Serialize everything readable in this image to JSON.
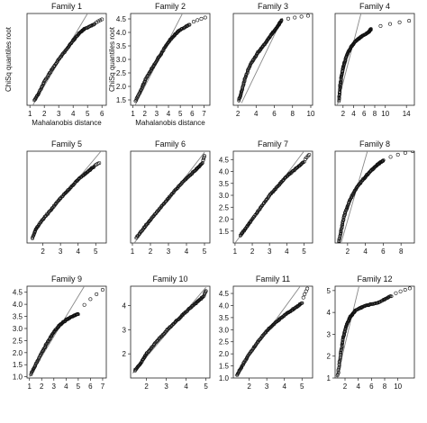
{
  "colors": {
    "axis": "#222222",
    "ref_line": "#888888",
    "points": "#111111",
    "background": "#ffffff"
  },
  "chart_data": [
    {
      "type": "scatter",
      "title": "Family 1",
      "xlabel": "Mahalanobis distance",
      "ylabel": "ChiSq quantiles root",
      "xlim": [
        0.8,
        6.3
      ],
      "ylim": [
        1.0,
        4.9
      ],
      "xticks": [
        1,
        2,
        3,
        4,
        5,
        6
      ],
      "yticks": [],
      "reference_line": [
        [
          1.0,
          0.8
        ],
        [
          5.0,
          4.9
        ]
      ],
      "qq_curve": [
        [
          1.3,
          1.2
        ],
        [
          1.6,
          1.5
        ],
        [
          2.0,
          2.0
        ],
        [
          2.5,
          2.5
        ],
        [
          3.0,
          2.95
        ],
        [
          3.5,
          3.35
        ],
        [
          4.0,
          3.75
        ],
        [
          4.4,
          4.05
        ],
        [
          4.8,
          4.25
        ],
        [
          5.5,
          4.45
        ],
        [
          6.0,
          4.65
        ]
      ],
      "n_points": 120
    },
    {
      "type": "scatter",
      "title": "Family 2",
      "xlabel": "Mahalanobis distance",
      "ylabel": "ChiSq quantiles root",
      "xlim": [
        0.8,
        7.5
      ],
      "ylim": [
        1.3,
        4.7
      ],
      "xticks": [
        1,
        2,
        3,
        4,
        5,
        6,
        7
      ],
      "yticks": [
        1.5,
        2.0,
        2.5,
        3.0,
        3.5,
        4.0,
        4.5
      ],
      "reference_line": [
        [
          1.0,
          1.15
        ],
        [
          5.3,
          4.8
        ]
      ],
      "qq_curve": [
        [
          1.2,
          1.45
        ],
        [
          1.6,
          1.8
        ],
        [
          2.0,
          2.2
        ],
        [
          2.5,
          2.6
        ],
        [
          3.0,
          2.95
        ],
        [
          3.5,
          3.3
        ],
        [
          4.0,
          3.65
        ],
        [
          4.5,
          3.9
        ],
        [
          5.0,
          4.1
        ],
        [
          5.8,
          4.3
        ],
        [
          7.1,
          4.55
        ]
      ],
      "n_points": 120
    },
    {
      "type": "scatter",
      "title": "Family 3",
      "xlabel": "",
      "ylabel": "",
      "xlim": [
        1.5,
        10.2
      ],
      "ylim": [
        1.0,
        5.0
      ],
      "xticks": [
        2,
        4,
        6,
        8,
        10
      ],
      "yticks": [],
      "reference_line": [
        [
          2.4,
          1.1
        ],
        [
          6.9,
          4.8
        ]
      ],
      "qq_curve": [
        [
          2.1,
          1.2
        ],
        [
          2.4,
          1.6
        ],
        [
          2.8,
          2.2
        ],
        [
          3.4,
          2.8
        ],
        [
          4.2,
          3.3
        ],
        [
          5.0,
          3.7
        ],
        [
          5.7,
          4.1
        ],
        [
          6.3,
          4.4
        ],
        [
          6.8,
          4.7
        ],
        [
          9.7,
          4.9
        ]
      ],
      "n_points": 130
    },
    {
      "type": "scatter",
      "title": "Family 4",
      "xlabel": "",
      "ylabel": "",
      "xlim": [
        0.5,
        15.5
      ],
      "ylim": [
        0.8,
        5.2
      ],
      "xticks": [
        2,
        4,
        6,
        8,
        10,
        14
      ],
      "yticks": [],
      "reference_line": [
        [
          0.8,
          0.7
        ],
        [
          5.5,
          5.3
        ]
      ],
      "qq_curve": [
        [
          1.2,
          1.0
        ],
        [
          1.4,
          1.6
        ],
        [
          1.7,
          2.2
        ],
        [
          2.1,
          2.7
        ],
        [
          2.7,
          3.2
        ],
        [
          3.5,
          3.6
        ],
        [
          4.5,
          3.9
        ],
        [
          5.5,
          4.1
        ],
        [
          6.8,
          4.3
        ],
        [
          7.3,
          4.45
        ],
        [
          14.5,
          4.85
        ]
      ],
      "n_points": 150
    },
    {
      "type": "scatter",
      "title": "Family 5",
      "xlabel": "",
      "ylabel": "",
      "xlim": [
        1.1,
        5.6
      ],
      "ylim": [
        1.0,
        4.9
      ],
      "xticks": [
        2,
        3,
        4,
        5
      ],
      "yticks": [],
      "reference_line": [
        [
          1.5,
          1.5
        ],
        [
          5.3,
          4.9
        ]
      ],
      "qq_curve": [
        [
          1.4,
          1.2
        ],
        [
          1.6,
          1.6
        ],
        [
          2.0,
          2.0
        ],
        [
          2.5,
          2.45
        ],
        [
          3.0,
          2.9
        ],
        [
          3.5,
          3.3
        ],
        [
          4.0,
          3.7
        ],
        [
          4.5,
          4.0
        ],
        [
          4.9,
          4.25
        ],
        [
          5.2,
          4.4
        ]
      ],
      "n_points": 120
    },
    {
      "type": "scatter",
      "title": "Family 6",
      "xlabel": "",
      "ylabel": "",
      "xlim": [
        0.9,
        5.3
      ],
      "ylim": [
        1.0,
        4.9
      ],
      "xticks": [
        1,
        2,
        3,
        4,
        5
      ],
      "yticks": [],
      "reference_line": [
        [
          1.1,
          1.0
        ],
        [
          5.0,
          4.85
        ]
      ],
      "qq_curve": [
        [
          1.2,
          1.2
        ],
        [
          1.6,
          1.6
        ],
        [
          2.0,
          2.0
        ],
        [
          2.5,
          2.45
        ],
        [
          3.0,
          2.9
        ],
        [
          3.5,
          3.35
        ],
        [
          4.0,
          3.75
        ],
        [
          4.5,
          4.1
        ],
        [
          4.9,
          4.4
        ],
        [
          5.0,
          4.7
        ]
      ],
      "n_points": 120
    },
    {
      "type": "scatter",
      "title": "Family 7",
      "xlabel": "",
      "ylabel": "",
      "xlim": [
        0.9,
        5.5
      ],
      "ylim": [
        1.0,
        4.85
      ],
      "xticks": [
        1,
        2,
        3,
        4,
        5
      ],
      "yticks": [
        1.5,
        2.0,
        2.5,
        3.0,
        3.5,
        4.0,
        4.5
      ],
      "reference_line": [
        [
          1.0,
          1.0
        ],
        [
          5.0,
          4.85
        ]
      ],
      "qq_curve": [
        [
          1.3,
          1.3
        ],
        [
          1.6,
          1.6
        ],
        [
          2.0,
          2.0
        ],
        [
          2.5,
          2.5
        ],
        [
          3.0,
          3.0
        ],
        [
          3.5,
          3.4
        ],
        [
          4.0,
          3.8
        ],
        [
          4.5,
          4.1
        ],
        [
          5.0,
          4.4
        ],
        [
          5.3,
          4.7
        ]
      ],
      "n_points": 120
    },
    {
      "type": "scatter",
      "title": "Family 8",
      "xlabel": "",
      "ylabel": "",
      "xlim": [
        0.6,
        9.5
      ],
      "ylim": [
        1.0,
        5.0
      ],
      "xticks": [
        2,
        4,
        6,
        8
      ],
      "yticks": [],
      "reference_line": [
        [
          1.2,
          0.9
        ],
        [
          4.3,
          5.1
        ]
      ],
      "qq_curve": [
        [
          1.0,
          1.0
        ],
        [
          1.3,
          1.6
        ],
        [
          1.7,
          2.3
        ],
        [
          2.3,
          2.9
        ],
        [
          3.0,
          3.4
        ],
        [
          3.8,
          3.8
        ],
        [
          4.5,
          4.1
        ],
        [
          5.3,
          4.4
        ],
        [
          6.0,
          4.6
        ],
        [
          9.3,
          5.0
        ]
      ],
      "n_points": 140
    },
    {
      "type": "scatter",
      "title": "Family 9",
      "xlabel": "",
      "ylabel": "",
      "xlim": [
        0.8,
        7.3
      ],
      "ylim": [
        0.95,
        4.75
      ],
      "xticks": [
        1,
        2,
        3,
        4,
        5,
        6,
        7
      ],
      "yticks": [
        1.0,
        1.5,
        2.0,
        2.5,
        3.0,
        3.5,
        4.0,
        4.5
      ],
      "reference_line": [
        [
          1.0,
          1.0
        ],
        [
          5.5,
          4.75
        ]
      ],
      "qq_curve": [
        [
          1.1,
          1.1
        ],
        [
          1.5,
          1.5
        ],
        [
          2.0,
          2.0
        ],
        [
          2.5,
          2.45
        ],
        [
          3.0,
          2.85
        ],
        [
          3.5,
          3.15
        ],
        [
          4.0,
          3.35
        ],
        [
          4.5,
          3.5
        ],
        [
          5.0,
          3.6
        ],
        [
          7.0,
          4.6
        ]
      ],
      "n_points": 120
    },
    {
      "type": "scatter",
      "title": "Family 10",
      "xlabel": "",
      "ylabel": "",
      "xlim": [
        1.2,
        5.2
      ],
      "ylim": [
        1.0,
        4.8
      ],
      "xticks": [
        2,
        3,
        4,
        5
      ],
      "yticks": [
        2,
        3,
        4
      ],
      "reference_line": [
        [
          1.3,
          1.2
        ],
        [
          5.0,
          4.75
        ]
      ],
      "qq_curve": [
        [
          1.4,
          1.3
        ],
        [
          1.7,
          1.6
        ],
        [
          2.0,
          2.0
        ],
        [
          2.5,
          2.5
        ],
        [
          3.0,
          2.95
        ],
        [
          3.5,
          3.35
        ],
        [
          4.0,
          3.75
        ],
        [
          4.5,
          4.1
        ],
        [
          4.9,
          4.4
        ],
        [
          5.0,
          4.6
        ]
      ],
      "n_points": 130
    },
    {
      "type": "scatter",
      "title": "Family 11",
      "xlabel": "",
      "ylabel": "",
      "xlim": [
        1.1,
        5.6
      ],
      "ylim": [
        1.0,
        4.8
      ],
      "xticks": [
        2,
        3,
        4,
        5
      ],
      "yticks": [
        1.0,
        1.5,
        2.0,
        2.5,
        3.0,
        3.5,
        4.0,
        4.5
      ],
      "reference_line": [
        [
          1.2,
          1.1
        ],
        [
          4.9,
          4.8
        ]
      ],
      "qq_curve": [
        [
          1.3,
          1.1
        ],
        [
          1.6,
          1.5
        ],
        [
          2.0,
          2.0
        ],
        [
          2.5,
          2.5
        ],
        [
          3.0,
          2.95
        ],
        [
          3.5,
          3.3
        ],
        [
          4.0,
          3.6
        ],
        [
          4.5,
          3.85
        ],
        [
          5.0,
          4.1
        ],
        [
          5.3,
          4.7
        ]
      ],
      "n_points": 130
    },
    {
      "type": "scatter",
      "title": "Family 12",
      "xlabel": "",
      "ylabel": "",
      "xlim": [
        0.5,
        12.5
      ],
      "ylim": [
        1.0,
        5.2
      ],
      "xticks": [
        2,
        4,
        6,
        8,
        10
      ],
      "yticks": [
        1,
        2,
        3,
        4,
        5
      ],
      "reference_line": [
        [
          0.7,
          0.9
        ],
        [
          4.2,
          5.3
        ]
      ],
      "qq_curve": [
        [
          0.9,
          1.1
        ],
        [
          1.3,
          2.0
        ],
        [
          1.7,
          2.8
        ],
        [
          2.2,
          3.4
        ],
        [
          2.8,
          3.8
        ],
        [
          3.6,
          4.1
        ],
        [
          5.0,
          4.3
        ],
        [
          7.0,
          4.45
        ],
        [
          9.0,
          4.75
        ],
        [
          11.8,
          5.1
        ]
      ],
      "n_points": 150
    }
  ]
}
